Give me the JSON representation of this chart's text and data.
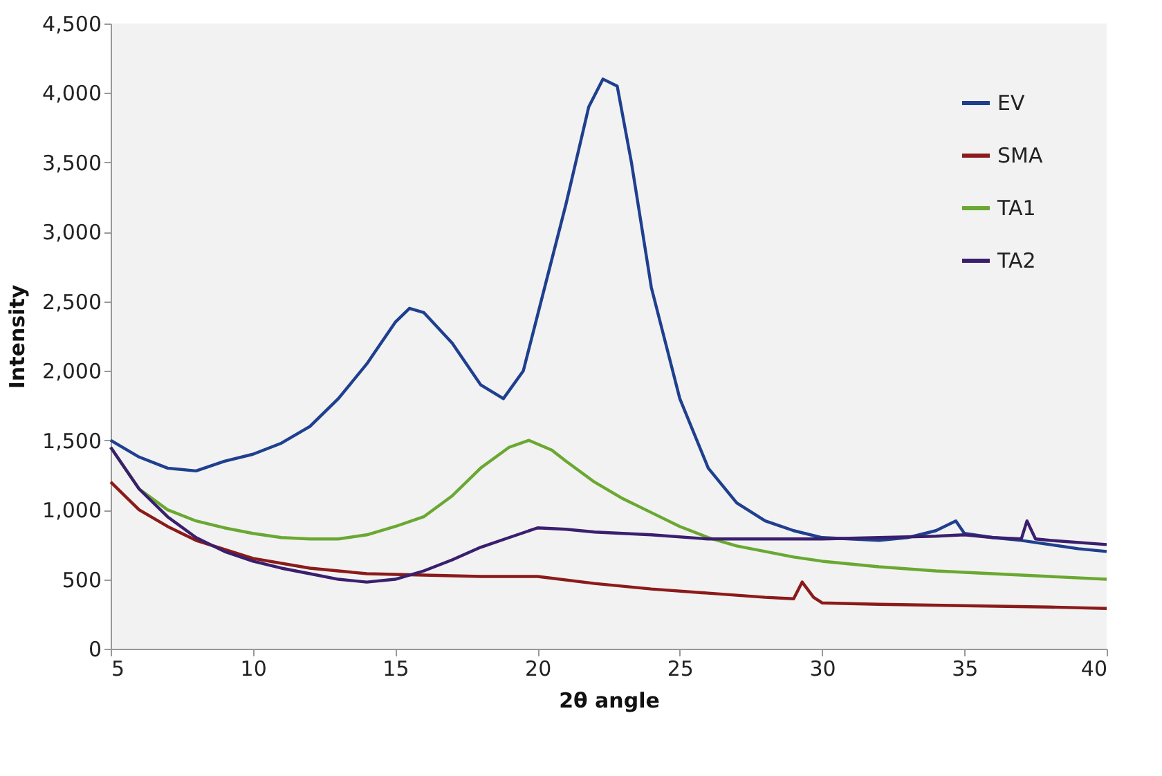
{
  "chart_data": {
    "type": "line",
    "xlabel": "2θ angle",
    "ylabel": "Intensity",
    "xlim": [
      5,
      40
    ],
    "ylim": [
      0,
      4500
    ],
    "xticks": [
      5,
      10,
      15,
      20,
      25,
      30,
      35,
      40
    ],
    "yticks": [
      0,
      {
        "value": 500,
        "label": "500"
      },
      {
        "value": 1000,
        "label": "1,000"
      },
      {
        "value": 1500,
        "label": "1,500"
      },
      {
        "value": 2000,
        "label": "2,000"
      },
      {
        "value": 2500,
        "label": "2,500"
      },
      {
        "value": 3000,
        "label": "3,000"
      },
      {
        "value": 3500,
        "label": "3,500"
      },
      {
        "value": 4000,
        "label": "4,000"
      },
      {
        "value": 4500,
        "label": "4,500"
      }
    ],
    "legend": "top right",
    "grid": false,
    "marker": "none",
    "series": [
      {
        "name": "EV",
        "color": "#1f3f8f",
        "x": [
          5,
          6,
          7,
          8,
          9,
          10,
          11,
          12,
          13,
          14,
          15,
          15.5,
          16,
          17,
          18,
          18.8,
          19.5,
          20,
          21,
          21.8,
          22.3,
          22.8,
          23.3,
          24,
          25,
          26,
          27,
          28,
          29,
          30,
          31,
          32,
          33,
          34,
          34.7,
          35,
          36,
          37,
          38,
          39,
          40
        ],
        "values": [
          1500,
          1380,
          1300,
          1280,
          1350,
          1400,
          1480,
          1600,
          1800,
          2050,
          2350,
          2450,
          2420,
          2200,
          1900,
          1800,
          2000,
          2400,
          3200,
          3900,
          4100,
          4050,
          3500,
          2600,
          1800,
          1300,
          1050,
          920,
          850,
          800,
          790,
          780,
          800,
          850,
          920,
          830,
          800,
          780,
          750,
          720,
          700
        ]
      },
      {
        "name": "SMA",
        "color": "#8b1a1a",
        "x": [
          5,
          6,
          7,
          8,
          10,
          12,
          14,
          16,
          18,
          20,
          22,
          24,
          26,
          28,
          29,
          29.3,
          29.7,
          30,
          32,
          35,
          38,
          40
        ],
        "values": [
          1200,
          1000,
          880,
          780,
          650,
          580,
          540,
          530,
          520,
          520,
          470,
          430,
          400,
          370,
          360,
          480,
          370,
          330,
          320,
          310,
          300,
          290
        ]
      },
      {
        "name": "TA1",
        "color": "#6aa832",
        "x": [
          5,
          6,
          7,
          8,
          9,
          10,
          11,
          12,
          13,
          14,
          15,
          16,
          17,
          18,
          19,
          19.7,
          20.5,
          21,
          22,
          23,
          24,
          25,
          26,
          27,
          28,
          29,
          30,
          32,
          34,
          36,
          38,
          40
        ],
        "values": [
          1450,
          1150,
          1000,
          920,
          870,
          830,
          800,
          790,
          790,
          820,
          880,
          950,
          1100,
          1300,
          1450,
          1500,
          1430,
          1350,
          1200,
          1080,
          980,
          880,
          800,
          740,
          700,
          660,
          630,
          590,
          560,
          540,
          520,
          500
        ]
      },
      {
        "name": "TA2",
        "color": "#3a1f6e",
        "x": [
          5,
          6,
          7,
          8,
          9,
          10,
          11,
          12,
          13,
          14,
          15,
          16,
          17,
          18,
          19,
          20,
          21,
          22,
          24,
          26,
          28,
          30,
          32,
          34,
          35,
          36,
          37,
          37.2,
          37.5,
          38,
          40
        ],
        "values": [
          1450,
          1150,
          950,
          800,
          700,
          630,
          580,
          540,
          500,
          480,
          500,
          560,
          640,
          730,
          800,
          870,
          860,
          840,
          820,
          790,
          790,
          790,
          800,
          810,
          820,
          800,
          790,
          920,
          790,
          780,
          750
        ]
      }
    ]
  }
}
